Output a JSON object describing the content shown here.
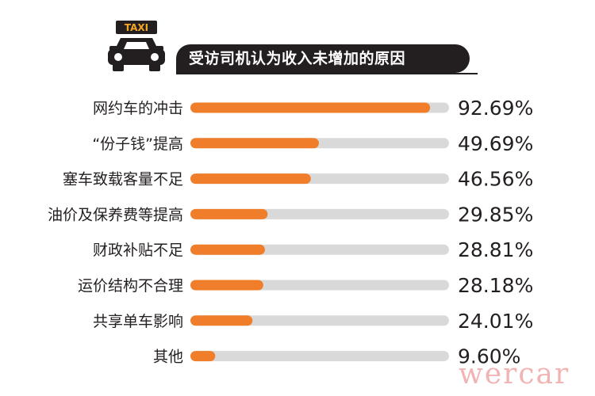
{
  "header": {
    "taxi_sign": "TAXI",
    "title": "受访司机认为收入未增加的原因"
  },
  "colors": {
    "bar": "#ef7d2a",
    "track": "#d9d9d9",
    "title_bg": "#231f20",
    "text": "#231f20"
  },
  "chart_data": {
    "type": "bar",
    "orientation": "horizontal",
    "title": "受访司机认为收入未增加的原因",
    "categories": [
      "网约车的冲击",
      "“份子钱”提高",
      "塞车致载客量不足",
      "油价及保养费等提高",
      "财政补贴不足",
      "运价结构不合理",
      "共享单车影响",
      "其他"
    ],
    "values": [
      92.69,
      49.69,
      46.56,
      29.85,
      28.81,
      28.18,
      24.01,
      9.6
    ],
    "value_labels": [
      "92.69%",
      "49.69%",
      "46.56%",
      "29.85%",
      "28.81%",
      "28.18%",
      "24.01%",
      "9.60%"
    ],
    "xlim": [
      0,
      100
    ],
    "grid": false,
    "legend": "none"
  },
  "watermark": "wercar"
}
